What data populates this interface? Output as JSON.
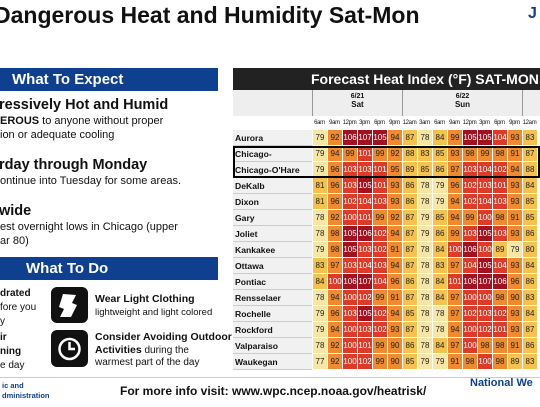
{
  "header": {
    "title": "Dangerous Heat and Humidity Sat-Mon",
    "corner": "J"
  },
  "expect": {
    "heading": "What To Expect",
    "items": [
      {
        "title": "ressively Hot and Humid",
        "lines": [
          [
            "EROUS",
            " to anyone without proper"
          ],
          [
            "ion or adequate cooling"
          ]
        ]
      },
      {
        "title": "rday through Monday",
        "lines": [
          [
            "ontinue into Tuesday for some areas."
          ]
        ]
      },
      {
        "title": "wide",
        "lines": [
          [
            "est overnight lows in Chicago (upper"
          ],
          [
            "ar 80)"
          ]
        ]
      }
    ]
  },
  "todo": {
    "heading": "What To Do",
    "left_tips": [
      [
        "drated",
        "fore you",
        "y"
      ],
      [
        "ir",
        "ning",
        "e day"
      ]
    ],
    "tips": [
      {
        "title": "Wear Light Clothing",
        "text": "lightweight and light colored"
      },
      {
        "title": "Consider Avoiding Outdoor",
        "title2": "Activities",
        "text": " during the",
        "text2": "warmest part of the day"
      }
    ]
  },
  "heat_table": {
    "title": "Forecast Heat Index (°F) SAT-MON",
    "days": [
      {
        "date": "6/21",
        "day": "Sat",
        "times": [
          "6am",
          "9am",
          "12pm",
          "3pm",
          "6pm",
          "9pm"
        ]
      },
      {
        "date": "6/22",
        "day": "Sun",
        "times": [
          "12am",
          "3am",
          "6am",
          "9am",
          "12pm",
          "3pm",
          "6pm",
          "9pm"
        ]
      },
      {
        "date": null,
        "day": null,
        "times": [
          "12am"
        ]
      }
    ],
    "rows": [
      {
        "name": "Aurora",
        "values": [
          79,
          92,
          106,
          107,
          105,
          94,
          87,
          78,
          84,
          99,
          105,
          105,
          104,
          93,
          83
        ]
      },
      {
        "name": "Chicago-Downtown",
        "values": [
          79,
          94,
          99,
          101,
          99,
          92,
          88,
          83,
          85,
          93,
          98,
          99,
          98,
          91,
          87
        ]
      },
      {
        "name": "Chicago-O'Hare",
        "values": [
          79,
          96,
          103,
          103,
          101,
          95,
          89,
          85,
          86,
          97,
          103,
          104,
          102,
          94,
          88
        ]
      },
      {
        "name": "DeKalb",
        "values": [
          81,
          96,
          103,
          105,
          101,
          93,
          86,
          78,
          79,
          96,
          102,
          103,
          101,
          93,
          84
        ]
      },
      {
        "name": "Dixon",
        "values": [
          81,
          96,
          102,
          104,
          103,
          93,
          86,
          78,
          79,
          94,
          102,
          104,
          103,
          93,
          85
        ]
      },
      {
        "name": "Gary",
        "values": [
          78,
          92,
          100,
          101,
          99,
          92,
          87,
          79,
          85,
          94,
          99,
          100,
          98,
          91,
          85
        ]
      },
      {
        "name": "Joliet",
        "values": [
          78,
          98,
          105,
          106,
          102,
          94,
          87,
          79,
          86,
          99,
          103,
          105,
          103,
          93,
          86
        ]
      },
      {
        "name": "Kankakee",
        "values": [
          79,
          98,
          105,
          103,
          102,
          91,
          87,
          78,
          84,
          100,
          106,
          100,
          89,
          79,
          80
        ]
      },
      {
        "name": "Ottawa",
        "values": [
          83,
          97,
          103,
          104,
          103,
          94,
          87,
          78,
          83,
          97,
          104,
          105,
          104,
          93,
          84
        ]
      },
      {
        "name": "Pontiac",
        "values": [
          84,
          100,
          106,
          107,
          104,
          96,
          86,
          78,
          84,
          101,
          106,
          107,
          106,
          96,
          86
        ]
      },
      {
        "name": "Rensselaer",
        "values": [
          78,
          94,
          100,
          102,
          99,
          91,
          87,
          78,
          84,
          97,
          100,
          100,
          98,
          90,
          83
        ]
      },
      {
        "name": "Rochelle",
        "values": [
          79,
          96,
          103,
          105,
          102,
          94,
          85,
          78,
          78,
          97,
          102,
          103,
          102,
          93,
          84
        ]
      },
      {
        "name": "Rockford",
        "values": [
          79,
          94,
          100,
          103,
          102,
          93,
          87,
          79,
          78,
          94,
          100,
          102,
          101,
          93,
          87
        ]
      },
      {
        "name": "Valparaiso",
        "values": [
          78,
          92,
          100,
          101,
          99,
          90,
          86,
          78,
          84,
          97,
          100,
          98,
          98,
          91,
          86
        ]
      },
      {
        "name": "Waukegan",
        "values": [
          77,
          92,
          100,
          102,
          99,
          90,
          85,
          79,
          79,
          91,
          98,
          100,
          98,
          89,
          83
        ]
      }
    ]
  },
  "footer": {
    "agency": [
      "ic and",
      "dministration"
    ],
    "link": "For more info visit: www.wpc.ncep.noaa.gov/heatrisk/",
    "right": "National We"
  }
}
